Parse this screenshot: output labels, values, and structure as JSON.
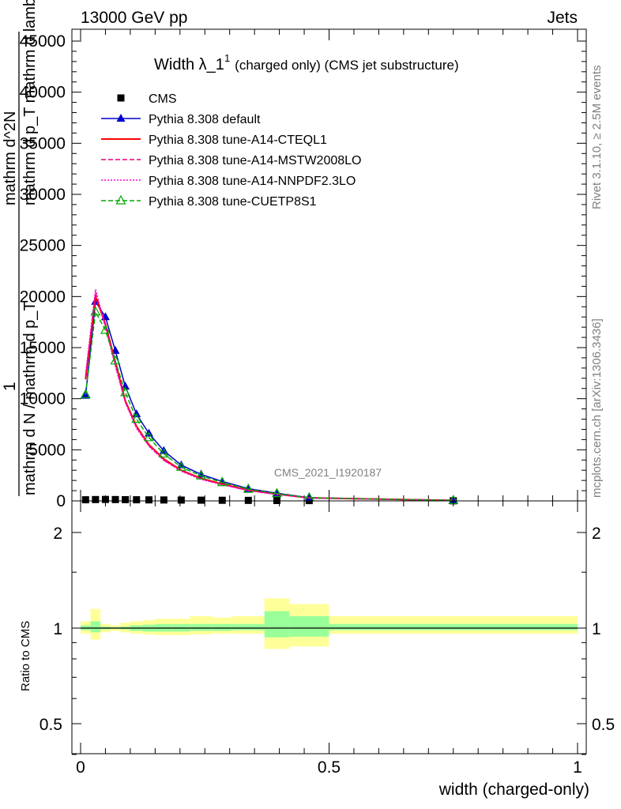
{
  "header": {
    "left": "13000 GeV pp",
    "right": "Jets"
  },
  "side_labels": {
    "rivet": "Rivet 3.1.10, ≥ 2.5M events",
    "mcplots": "mcplots.cern.ch [arXiv:1306.3436]"
  },
  "watermark": "CMS_2021_I1920187",
  "chart_data": [
    {
      "type": "line",
      "title_main": "Width λ_1",
      "title_sup": "1",
      "title_rest": "(charged only) (CMS jet substructure)",
      "ylabel_parts": [
        "1",
        "mathrm d N / mathrm d p_T",
        "mathrm d^2N",
        "mathrm d p_T mathrm d lambda"
      ],
      "xlim": [
        0,
        1
      ],
      "ylim": [
        0,
        46000
      ],
      "yticks": [
        0,
        5000,
        10000,
        15000,
        20000,
        25000,
        30000,
        35000,
        40000,
        45000
      ],
      "ytick_labels": [
        "0",
        "5000",
        "10000",
        "15000",
        "20000",
        "25000",
        "30000",
        "35000",
        "40000",
        "45000"
      ],
      "x_bin_edges": [
        0,
        0.02,
        0.04,
        0.06,
        0.08,
        0.1,
        0.125,
        0.15,
        0.185,
        0.22,
        0.265,
        0.305,
        0.37,
        0.42,
        0.5,
        1.0
      ],
      "x_centers": [
        0.01,
        0.03,
        0.05,
        0.07,
        0.09,
        0.1125,
        0.1375,
        0.1675,
        0.2025,
        0.2425,
        0.285,
        0.3375,
        0.395,
        0.46,
        0.75
      ],
      "legend_position": "top-left",
      "series": [
        {
          "name": "CMS",
          "color": "#000000",
          "marker": "square",
          "line": "none",
          "values": [
            110,
            130,
            140,
            130,
            120,
            110,
            100,
            90,
            80,
            70,
            60,
            50,
            40,
            30,
            10
          ]
        },
        {
          "name": "Pythia 8.308 default",
          "color": "#0000cc",
          "marker": "triangle",
          "line": "solid",
          "values": [
            10300,
            19500,
            18000,
            14700,
            11200,
            8500,
            6600,
            4900,
            3500,
            2600,
            1900,
            1200,
            750,
            320,
            50
          ]
        },
        {
          "name": "Pythia 8.308 tune-A14-CTEQL1",
          "color": "#ff0000",
          "marker": "none",
          "line": "solid",
          "values": [
            11900,
            20000,
            17300,
            13600,
            9800,
            7300,
            5500,
            4100,
            3000,
            2200,
            1650,
            1050,
            660,
            290,
            45
          ]
        },
        {
          "name": "Pythia 8.308 tune-A14-MSTW2008LO",
          "color": "#e6007a",
          "marker": "none",
          "line": "dashed",
          "values": [
            12100,
            20400,
            17100,
            13300,
            9700,
            7200,
            5400,
            4000,
            2950,
            2150,
            1600,
            1020,
            640,
            280,
            45
          ]
        },
        {
          "name": "Pythia 8.308 tune-A14-NNPDF2.3LO",
          "color": "#ff00cc",
          "marker": "none",
          "line": "dotted",
          "values": [
            12400,
            20700,
            17000,
            13200,
            9600,
            7100,
            5350,
            3950,
            2900,
            2100,
            1580,
            1000,
            630,
            275,
            45
          ]
        },
        {
          "name": "Pythia 8.308 tune-CUETP8S1",
          "color": "#00aa00",
          "marker": "open-triangle",
          "line": "dashed",
          "values": [
            10400,
            18500,
            16700,
            13700,
            10600,
            8000,
            6200,
            4600,
            3300,
            2450,
            1800,
            1150,
            720,
            305,
            48
          ]
        }
      ]
    },
    {
      "type": "area",
      "ylabel": "Ratio to CMS",
      "xlabel": "width (charged-only)",
      "xlim": [
        0,
        1
      ],
      "ylim": [
        0.38,
        2.3
      ],
      "log_y": true,
      "yticks": [
        0.5,
        1,
        2
      ],
      "ytick_labels": [
        "0.5",
        "1",
        "2"
      ],
      "xticks": [
        0,
        0.5,
        1
      ],
      "xtick_labels": [
        "0",
        "0.5",
        "1"
      ],
      "reference_line": 1,
      "band_colors": {
        "stat": "#99ff99",
        "total": "#ffff99"
      },
      "bands": {
        "x_bin_edges": [
          0,
          0.02,
          0.04,
          0.06,
          0.08,
          0.1,
          0.125,
          0.15,
          0.185,
          0.22,
          0.265,
          0.305,
          0.37,
          0.42,
          0.5,
          1.0
        ],
        "total_lo": [
          0.96,
          0.92,
          0.97,
          0.98,
          0.97,
          0.96,
          0.955,
          0.95,
          0.95,
          0.955,
          0.96,
          0.96,
          0.86,
          0.875,
          0.96
        ],
        "total_hi": [
          1.05,
          1.15,
          1.03,
          1.02,
          1.04,
          1.05,
          1.06,
          1.07,
          1.07,
          1.09,
          1.08,
          1.09,
          1.24,
          1.19,
          1.09
        ],
        "stat_lo": [
          0.985,
          0.97,
          0.99,
          0.995,
          0.99,
          0.98,
          0.975,
          0.975,
          0.975,
          0.98,
          0.98,
          0.985,
          0.935,
          0.94,
          0.985
        ],
        "stat_hi": [
          1.02,
          1.05,
          1.01,
          1.005,
          1.01,
          1.02,
          1.025,
          1.03,
          1.03,
          1.03,
          1.03,
          1.03,
          1.13,
          1.09,
          1.03
        ]
      }
    }
  ]
}
